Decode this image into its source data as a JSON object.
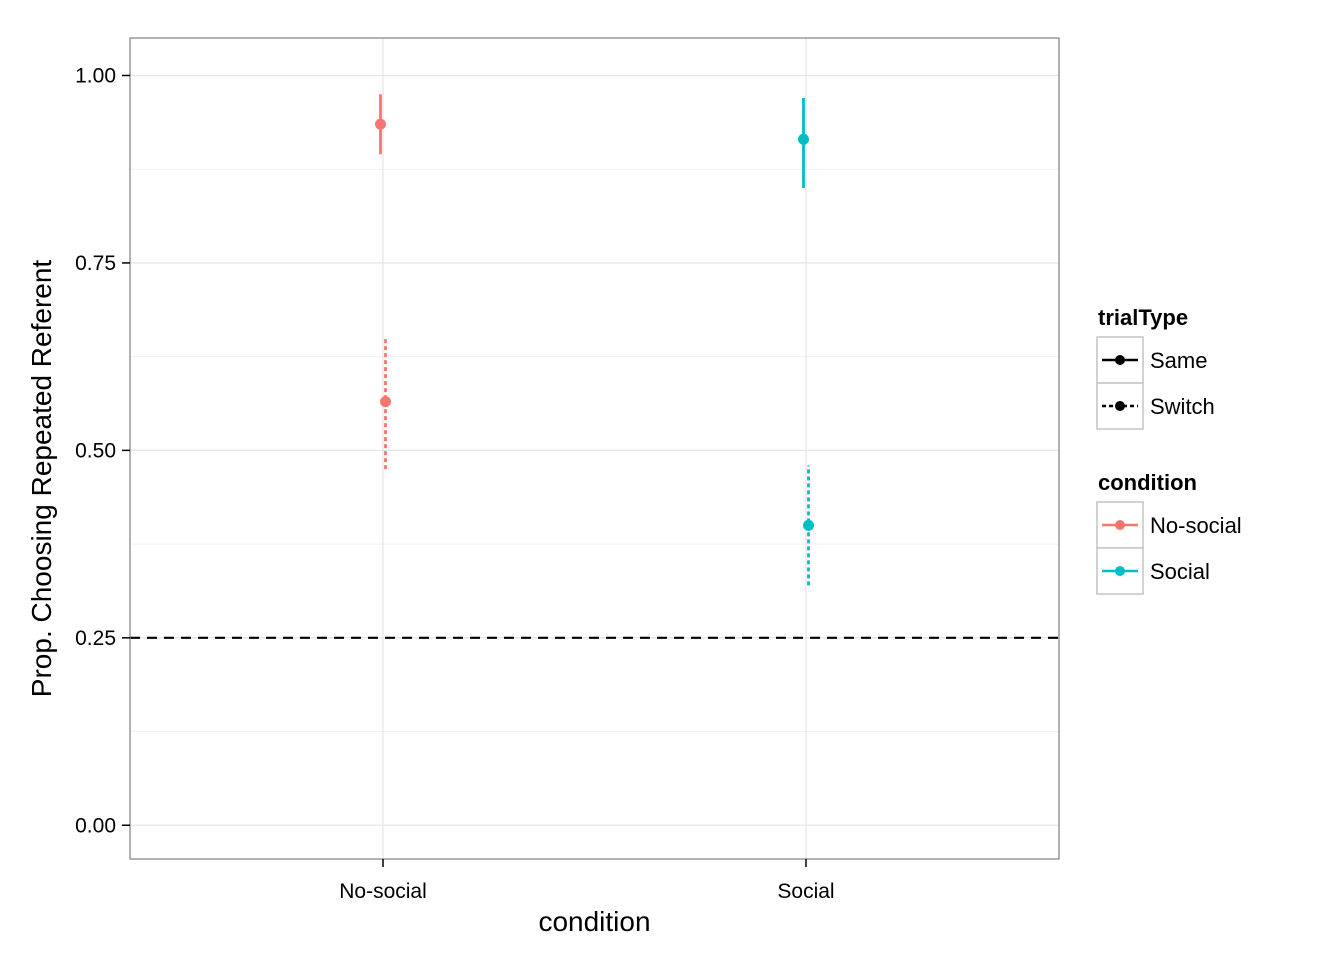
{
  "chart_data": {
    "type": "scatter",
    "subtype": "pointrange",
    "categories": [
      "No-social",
      "Social"
    ],
    "xlabel": "condition",
    "ylabel": "Prop. Choosing Repeated Referent",
    "ylim": [
      -0.045,
      1.05
    ],
    "yticks": [
      {
        "value": 0.0,
        "label": "0.00"
      },
      {
        "value": 0.25,
        "label": "0.25"
      },
      {
        "value": 0.5,
        "label": "0.50"
      },
      {
        "value": 0.75,
        "label": "0.75"
      },
      {
        "value": 1.0,
        "label": "1.00"
      }
    ],
    "grid": true,
    "reference_line": {
      "y": 0.25,
      "style": "dashed",
      "color": "#000000"
    },
    "points": [
      {
        "condition": "No-social",
        "trialType": "Same",
        "y": 0.935,
        "ymin": 0.895,
        "ymax": 0.975
      },
      {
        "condition": "No-social",
        "trialType": "Switch",
        "y": 0.565,
        "ymin": 0.475,
        "ymax": 0.65
      },
      {
        "condition": "Social",
        "trialType": "Same",
        "y": 0.915,
        "ymin": 0.85,
        "ymax": 0.97
      },
      {
        "condition": "Social",
        "trialType": "Switch",
        "y": 0.4,
        "ymin": 0.32,
        "ymax": 0.48
      }
    ],
    "legend": {
      "placement": "right",
      "groups": [
        {
          "title": "trialType",
          "entries": [
            {
              "label": "Same",
              "linetype": "solid",
              "color": "#000000"
            },
            {
              "label": "Switch",
              "linetype": "dotted",
              "color": "#000000"
            }
          ]
        },
        {
          "title": "condition",
          "entries": [
            {
              "label": "No-social",
              "linetype": "solid",
              "color": "#F8766D"
            },
            {
              "label": "Social",
              "linetype": "solid",
              "color": "#00BFC4"
            }
          ]
        }
      ]
    },
    "colors": {
      "No-social": "#F8766D",
      "Social": "#00BFC4"
    }
  }
}
